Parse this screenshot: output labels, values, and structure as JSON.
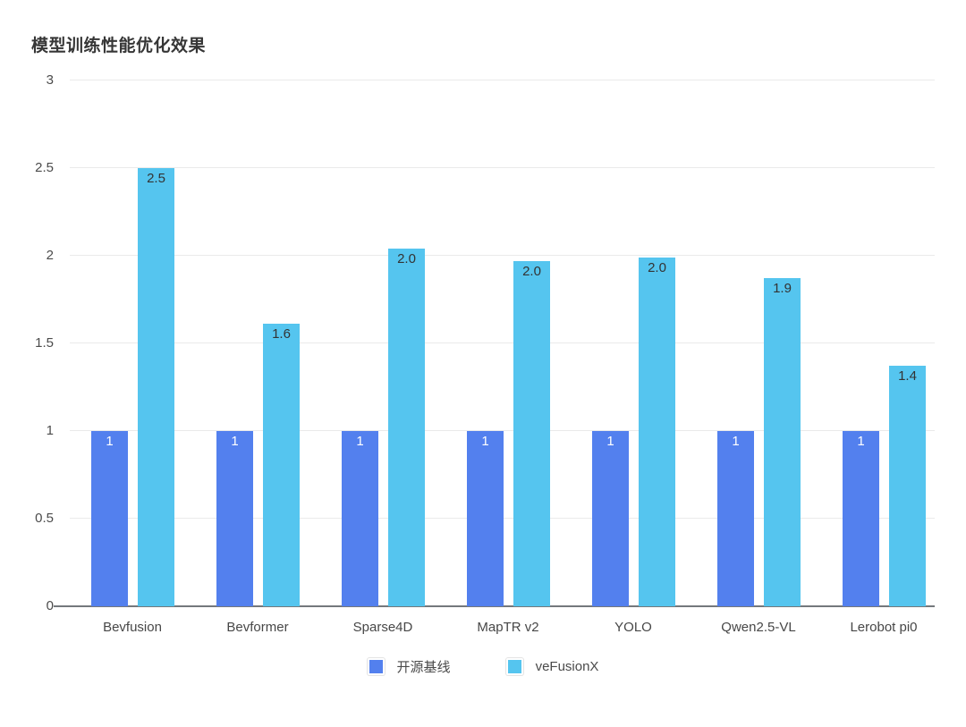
{
  "title": "模型训练性能优化效果",
  "chart_data": {
    "type": "bar",
    "title": "模型训练性能优化效果",
    "categories": [
      "Bevfusion",
      "Bevformer",
      "Sparse4D",
      "MapTR v2",
      "YOLO",
      "Qwen2.5-VL",
      "Lerobot pi0"
    ],
    "series": [
      {
        "name": "开源基线",
        "color": "#5380EE",
        "label_color": "#ffffff",
        "values": [
          1,
          1,
          1,
          1,
          1,
          1,
          1
        ],
        "labels": [
          "1",
          "1",
          "1",
          "1",
          "1",
          "1",
          "1"
        ]
      },
      {
        "name": "veFusionX",
        "color": "#55C5EF",
        "label_color": "#333333",
        "values": [
          2.5,
          1.61,
          2.04,
          1.97,
          1.99,
          1.87,
          1.37
        ],
        "labels": [
          "2.5",
          "1.6",
          "2.0",
          "2.0",
          "2.0",
          "1.9",
          "1.4"
        ]
      }
    ],
    "xlabel": "",
    "ylabel": "",
    "ylim": [
      0,
      3
    ],
    "yticks": [
      0,
      0.5,
      1,
      1.5,
      2,
      2.5,
      3
    ],
    "ytick_labels": [
      "0",
      "0.5",
      "1",
      "1.5",
      "2",
      "2.5",
      "3"
    ],
    "grid": true,
    "legend_position": "bottom"
  },
  "colors": {
    "baseline_blue": "#5380EE",
    "vefusionx_cyan": "#55C5EF",
    "gridline": "#eaeaea",
    "axis_line": "#74787c",
    "title_text": "#363636",
    "tick_text": "#4b4b4b"
  }
}
